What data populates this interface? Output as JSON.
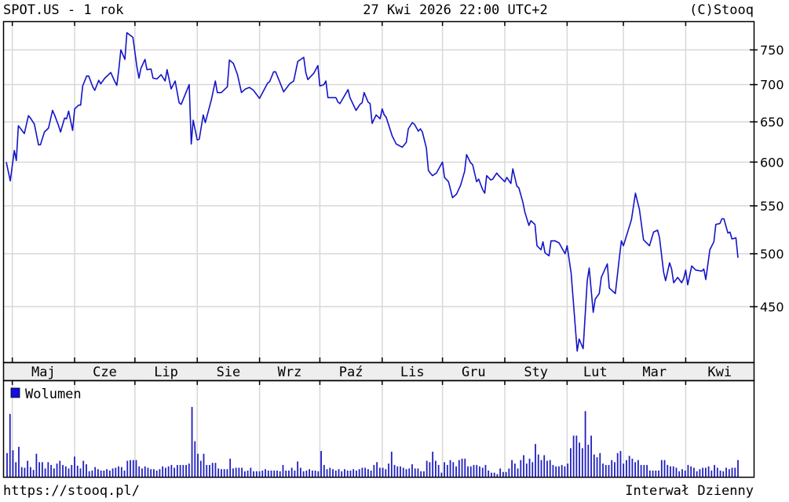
{
  "header": {
    "title": "SPOT.US - 1 rok",
    "datetime": "27 Kwi 2026 22:00 UTC+2",
    "copyright": "(C)Stooq"
  },
  "footer": {
    "url": "https://stooq.pl/",
    "interval": "Interwał Dzienny"
  },
  "colors": {
    "line": "#1414c8",
    "volume": "#2020c0",
    "grid": "#d8d8d8",
    "band": "#eeeeee"
  },
  "chart_data": {
    "type": "line",
    "y_scale": "log",
    "ylim": [
      405,
      785
    ],
    "grid": true,
    "y_ticks": [
      450,
      500,
      550,
      600,
      650,
      700,
      750
    ],
    "x_range": [
      "2025-04-28",
      "2026-04-27"
    ],
    "month_ticks": [
      {
        "date": "2025-05-01",
        "label": "Maj"
      },
      {
        "date": "2025-06-01",
        "label": "Cze"
      },
      {
        "date": "2025-07-01",
        "label": "Lip"
      },
      {
        "date": "2025-08-01",
        "label": "Sie"
      },
      {
        "date": "2025-09-01",
        "label": "Wrz"
      },
      {
        "date": "2025-10-01",
        "label": "Paź"
      },
      {
        "date": "2025-11-01",
        "label": "Lis"
      },
      {
        "date": "2025-12-01",
        "label": "Gru"
      },
      {
        "date": "2026-01-01",
        "label": "Sty"
      },
      {
        "date": "2026-02-01",
        "label": "Lut"
      },
      {
        "date": "2026-03-01",
        "label": "Mar"
      },
      {
        "date": "2026-04-01",
        "label": "Kwi"
      }
    ],
    "points": [
      [
        "2025-04-28",
        600
      ],
      [
        "2025-04-30",
        578
      ],
      [
        "2025-05-02",
        614
      ],
      [
        "2025-05-03",
        602
      ],
      [
        "2025-05-04",
        645
      ],
      [
        "2025-05-07",
        635
      ],
      [
        "2025-05-09",
        658
      ],
      [
        "2025-05-10",
        655
      ],
      [
        "2025-05-12",
        647
      ],
      [
        "2025-05-14",
        621
      ],
      [
        "2025-05-15",
        621
      ],
      [
        "2025-05-17",
        637
      ],
      [
        "2025-05-19",
        642
      ],
      [
        "2025-05-21",
        665
      ],
      [
        "2025-05-22",
        659
      ],
      [
        "2025-05-24",
        645
      ],
      [
        "2025-05-25",
        637
      ],
      [
        "2025-05-27",
        655
      ],
      [
        "2025-05-28",
        654
      ],
      [
        "2025-05-29",
        664
      ],
      [
        "2025-05-31",
        639
      ],
      [
        "2025-06-01",
        667
      ],
      [
        "2025-06-03",
        672
      ],
      [
        "2025-06-04",
        672
      ],
      [
        "2025-06-05",
        698
      ],
      [
        "2025-06-07",
        712
      ],
      [
        "2025-06-08",
        712
      ],
      [
        "2025-06-10",
        697
      ],
      [
        "2025-06-11",
        692
      ],
      [
        "2025-06-13",
        706
      ],
      [
        "2025-06-14",
        701
      ],
      [
        "2025-06-16",
        709
      ],
      [
        "2025-06-19",
        717
      ],
      [
        "2025-06-21",
        704
      ],
      [
        "2025-06-22",
        699
      ],
      [
        "2025-06-23",
        722
      ],
      [
        "2025-06-24",
        750
      ],
      [
        "2025-06-26",
        736
      ],
      [
        "2025-06-27",
        776
      ],
      [
        "2025-06-30",
        769
      ],
      [
        "2025-07-02",
        725
      ],
      [
        "2025-07-03",
        709
      ],
      [
        "2025-07-04",
        723
      ],
      [
        "2025-07-06",
        736
      ],
      [
        "2025-07-07",
        721
      ],
      [
        "2025-07-09",
        722
      ],
      [
        "2025-07-10",
        709
      ],
      [
        "2025-07-12",
        708
      ],
      [
        "2025-07-14",
        714
      ],
      [
        "2025-07-16",
        705
      ],
      [
        "2025-07-17",
        721
      ],
      [
        "2025-07-19",
        694
      ],
      [
        "2025-07-21",
        705
      ],
      [
        "2025-07-23",
        675
      ],
      [
        "2025-07-24",
        673
      ],
      [
        "2025-07-28",
        700
      ],
      [
        "2025-07-29",
        622
      ],
      [
        "2025-07-30",
        652
      ],
      [
        "2025-08-01",
        627
      ],
      [
        "2025-08-02",
        628
      ],
      [
        "2025-08-04",
        659
      ],
      [
        "2025-08-05",
        649
      ],
      [
        "2025-08-08",
        679
      ],
      [
        "2025-08-10",
        705
      ],
      [
        "2025-08-11",
        689
      ],
      [
        "2025-08-13",
        689
      ],
      [
        "2025-08-16",
        697
      ],
      [
        "2025-08-17",
        735
      ],
      [
        "2025-08-19",
        730
      ],
      [
        "2025-08-21",
        714
      ],
      [
        "2025-08-23",
        689
      ],
      [
        "2025-08-25",
        694
      ],
      [
        "2025-08-27",
        696
      ],
      [
        "2025-08-29",
        692
      ],
      [
        "2025-09-01",
        681
      ],
      [
        "2025-09-05",
        702
      ],
      [
        "2025-09-06",
        704
      ],
      [
        "2025-09-08",
        718
      ],
      [
        "2025-09-09",
        718
      ],
      [
        "2025-09-11",
        704
      ],
      [
        "2025-09-13",
        690
      ],
      [
        "2025-09-16",
        701
      ],
      [
        "2025-09-18",
        705
      ],
      [
        "2025-09-20",
        733
      ],
      [
        "2025-09-23",
        739
      ],
      [
        "2025-09-24",
        717
      ],
      [
        "2025-09-25",
        707
      ],
      [
        "2025-09-28",
        716
      ],
      [
        "2025-09-30",
        727
      ],
      [
        "2025-10-01",
        698
      ],
      [
        "2025-10-03",
        700
      ],
      [
        "2025-10-04",
        705
      ],
      [
        "2025-10-05",
        682
      ],
      [
        "2025-10-09",
        682
      ],
      [
        "2025-10-10",
        676
      ],
      [
        "2025-10-11",
        674
      ],
      [
        "2025-10-15",
        693
      ],
      [
        "2025-10-16",
        682
      ],
      [
        "2025-10-19",
        665
      ],
      [
        "2025-10-21",
        673
      ],
      [
        "2025-10-22",
        675
      ],
      [
        "2025-10-23",
        689
      ],
      [
        "2025-10-25",
        676
      ],
      [
        "2025-10-26",
        674
      ],
      [
        "2025-10-27",
        648
      ],
      [
        "2025-10-29",
        659
      ],
      [
        "2025-10-31",
        654
      ],
      [
        "2025-11-01",
        667
      ],
      [
        "2025-11-02",
        659
      ],
      [
        "2025-11-03",
        656
      ],
      [
        "2025-11-06",
        632
      ],
      [
        "2025-11-08",
        622
      ],
      [
        "2025-11-11",
        618
      ],
      [
        "2025-11-13",
        624
      ],
      [
        "2025-11-14",
        641
      ],
      [
        "2025-11-16",
        649
      ],
      [
        "2025-11-17",
        647
      ],
      [
        "2025-11-19",
        638
      ],
      [
        "2025-11-20",
        641
      ],
      [
        "2025-11-21",
        637
      ],
      [
        "2025-11-23",
        617
      ],
      [
        "2025-11-24",
        590
      ],
      [
        "2025-11-26",
        584
      ],
      [
        "2025-11-28",
        587
      ],
      [
        "2025-12-01",
        600
      ],
      [
        "2025-12-02",
        582
      ],
      [
        "2025-12-04",
        577
      ],
      [
        "2025-12-06",
        559
      ],
      [
        "2025-12-08",
        563
      ],
      [
        "2025-12-10",
        573
      ],
      [
        "2025-12-12",
        589
      ],
      [
        "2025-12-13",
        609
      ],
      [
        "2025-12-15",
        599
      ],
      [
        "2025-12-16",
        597
      ],
      [
        "2025-12-18",
        577
      ],
      [
        "2025-12-19",
        580
      ],
      [
        "2025-12-21",
        568
      ],
      [
        "2025-12-22",
        564
      ],
      [
        "2025-12-23",
        584
      ],
      [
        "2025-12-25",
        579
      ],
      [
        "2025-12-26",
        580
      ],
      [
        "2025-12-28",
        587
      ],
      [
        "2025-12-29",
        584
      ],
      [
        "2026-01-01",
        577
      ],
      [
        "2026-01-02",
        582
      ],
      [
        "2026-01-04",
        575
      ],
      [
        "2026-01-05",
        592
      ],
      [
        "2026-01-07",
        572
      ],
      [
        "2026-01-08",
        570
      ],
      [
        "2026-01-10",
        554
      ],
      [
        "2026-01-11",
        543
      ],
      [
        "2026-01-13",
        529
      ],
      [
        "2026-01-14",
        534
      ],
      [
        "2026-01-16",
        530
      ],
      [
        "2026-01-17",
        508
      ],
      [
        "2026-01-19",
        504
      ],
      [
        "2026-01-20",
        512
      ],
      [
        "2026-01-21",
        501
      ],
      [
        "2026-01-23",
        498
      ],
      [
        "2026-01-24",
        513
      ],
      [
        "2026-01-26",
        513
      ],
      [
        "2026-01-28",
        511
      ],
      [
        "2026-01-31",
        500
      ],
      [
        "2026-02-01",
        508
      ],
      [
        "2026-02-03",
        481
      ],
      [
        "2026-02-06",
        412
      ],
      [
        "2026-02-07",
        422
      ],
      [
        "2026-02-09",
        414
      ],
      [
        "2026-02-11",
        474
      ],
      [
        "2026-02-12",
        486
      ],
      [
        "2026-02-14",
        445
      ],
      [
        "2026-02-15",
        457
      ],
      [
        "2026-02-17",
        462
      ],
      [
        "2026-02-18",
        477
      ],
      [
        "2026-02-21",
        490
      ],
      [
        "2026-02-22",
        467
      ],
      [
        "2026-02-25",
        462
      ],
      [
        "2026-02-27",
        496
      ],
      [
        "2026-02-28",
        513
      ],
      [
        "2026-03-01",
        508
      ],
      [
        "2026-03-05",
        535
      ],
      [
        "2026-03-07",
        564
      ],
      [
        "2026-03-09",
        546
      ],
      [
        "2026-03-11",
        514
      ],
      [
        "2026-03-14",
        508
      ],
      [
        "2026-03-16",
        522
      ],
      [
        "2026-03-18",
        524
      ],
      [
        "2026-03-19",
        516
      ],
      [
        "2026-03-21",
        482
      ],
      [
        "2026-03-22",
        474
      ],
      [
        "2026-03-24",
        491
      ],
      [
        "2026-03-25",
        485
      ],
      [
        "2026-03-26",
        472
      ],
      [
        "2026-03-28",
        477
      ],
      [
        "2026-03-30",
        472
      ],
      [
        "2026-03-31",
        476
      ],
      [
        "2026-04-01",
        484
      ],
      [
        "2026-04-02",
        470
      ],
      [
        "2026-04-04",
        488
      ],
      [
        "2026-04-06",
        484
      ],
      [
        "2026-04-09",
        483
      ],
      [
        "2026-04-10",
        485
      ],
      [
        "2026-04-11",
        475
      ],
      [
        "2026-04-13",
        504
      ],
      [
        "2026-04-15",
        512
      ],
      [
        "2026-04-16",
        530
      ],
      [
        "2026-04-18",
        531
      ],
      [
        "2026-04-19",
        536
      ],
      [
        "2026-04-20",
        536
      ],
      [
        "2026-04-22",
        521
      ],
      [
        "2026-04-23",
        522
      ],
      [
        "2026-04-24",
        515
      ],
      [
        "2026-04-26",
        516
      ],
      [
        "2026-04-27",
        496
      ]
    ],
    "volume": {
      "legend": "Wolumen",
      "units": "relative (max = 100)",
      "values": [
        34,
        90,
        38,
        21,
        43,
        14,
        13,
        23,
        14,
        10,
        33,
        21,
        21,
        12,
        21,
        17,
        12,
        19,
        23,
        17,
        15,
        12,
        17,
        29,
        16,
        12,
        23,
        18,
        8,
        9,
        14,
        11,
        9,
        9,
        11,
        9,
        12,
        13,
        15,
        14,
        9,
        23,
        24,
        24,
        24,
        15,
        12,
        15,
        13,
        11,
        11,
        9,
        11,
        15,
        13,
        15,
        17,
        13,
        17,
        17,
        17,
        17,
        19,
        100,
        51,
        33,
        23,
        33,
        17,
        17,
        20,
        20,
        12,
        11,
        11,
        11,
        26,
        12,
        13,
        13,
        13,
        8,
        9,
        13,
        8,
        8,
        8,
        9,
        11,
        9,
        9,
        9,
        9,
        8,
        17,
        9,
        9,
        13,
        9,
        22,
        13,
        8,
        9,
        11,
        9,
        9,
        8,
        37,
        17,
        11,
        13,
        11,
        9,
        11,
        8,
        11,
        9,
        9,
        11,
        9,
        11,
        13,
        13,
        11,
        9,
        17,
        21,
        13,
        13,
        11,
        19,
        36,
        17,
        15,
        15,
        13,
        11,
        12,
        18,
        12,
        12,
        8,
        8,
        23,
        21,
        36,
        23,
        17,
        6,
        21,
        17,
        24,
        21,
        15,
        24,
        26,
        26,
        15,
        15,
        17,
        17,
        15,
        13,
        17,
        9,
        6,
        6,
        4,
        12,
        7,
        7,
        12,
        24,
        19,
        12,
        24,
        31,
        19,
        26,
        21,
        47,
        32,
        24,
        31,
        23,
        24,
        17,
        15,
        15,
        17,
        15,
        19,
        41,
        59,
        59,
        49,
        41,
        94,
        46,
        59,
        32,
        28,
        34,
        19,
        17,
        17,
        24,
        21,
        34,
        37,
        19,
        24,
        30,
        26,
        21,
        24,
        17,
        17,
        17,
        9,
        9,
        9,
        9,
        24,
        24,
        17,
        15,
        15,
        13,
        8,
        11,
        9,
        17,
        15,
        13,
        8,
        11,
        13,
        13,
        15,
        9,
        17,
        13,
        9,
        8,
        13,
        11,
        13,
        13,
        24
      ]
    }
  }
}
